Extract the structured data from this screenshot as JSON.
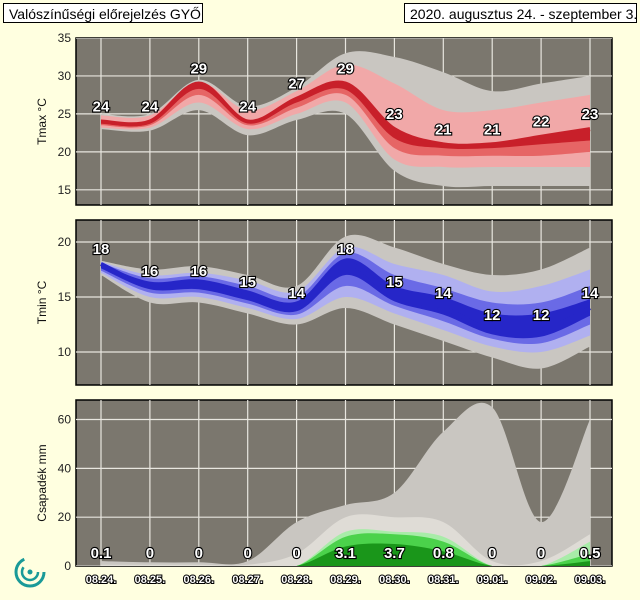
{
  "header": {
    "title": "Valószínűségi előrejelzés GYŐR",
    "period": "2020. augusztus 24. - szeptember 3."
  },
  "colors": {
    "background": "#ffffe0",
    "plot_bg": "#7b776e",
    "grid": "#e8e6df",
    "tmax": "#c8202a",
    "tmin": "#2626c8",
    "precip": "#22a822",
    "logo": "#1a9a98"
  },
  "logo": {
    "icon": "omsz-spiral-logo"
  },
  "chart_data": [
    {
      "type": "area",
      "ylabel": "Tmax °C",
      "ylim": [
        13,
        35
      ],
      "yticks": [
        15,
        20,
        25,
        30,
        35
      ],
      "categories": [
        "08.24.",
        "08.25.",
        "08.26.",
        "08.27.",
        "08.28.",
        "08.29.",
        "08.30.",
        "08.31.",
        "09.01.",
        "09.02.",
        "09.03."
      ],
      "median": [
        24,
        24,
        29,
        24,
        27,
        29,
        23,
        21,
        21,
        22,
        23
      ],
      "labels": [
        "24",
        "24",
        "29",
        "24",
        "27",
        "29",
        "23",
        "21",
        "21",
        "22",
        "23"
      ],
      "bands": [
        {
          "low": [
            23,
            22.8,
            25.5,
            22.2,
            24.2,
            25,
            17.5,
            15.5,
            15.5,
            15.5,
            15.5
          ],
          "high": [
            25,
            25,
            29.5,
            26,
            28.5,
            33,
            32.5,
            30.5,
            28,
            29,
            30
          ]
        },
        {
          "low": [
            23.2,
            23.2,
            26.5,
            23,
            25,
            26.5,
            19,
            18,
            18,
            18,
            18
          ],
          "high": [
            24.8,
            24.8,
            29.2,
            25.5,
            28,
            31.5,
            29,
            25.5,
            25.5,
            26.5,
            27.5
          ]
        },
        {
          "low": [
            23.5,
            23.5,
            27.5,
            23.5,
            25.8,
            27.5,
            20.5,
            19.5,
            19.5,
            19.5,
            20
          ]
        },
        {
          "low": [
            23.7,
            23.7,
            28.3,
            23.8,
            26.5,
            28.2,
            21.8,
            20.5,
            20.5,
            21,
            21.5
          ]
        }
      ]
    },
    {
      "type": "area",
      "ylabel": "Tmin °C",
      "ylim": [
        7,
        22
      ],
      "yticks": [
        10,
        15,
        20
      ],
      "categories": [
        "08.24.",
        "08.25.",
        "08.26.",
        "08.27.",
        "08.28.",
        "08.29.",
        "08.30.",
        "08.31.",
        "09.01.",
        "09.02.",
        "09.03."
      ],
      "median": [
        18,
        16,
        16,
        15,
        14,
        18,
        15,
        14,
        12,
        12,
        14
      ],
      "labels": [
        "18",
        "16",
        "16",
        "15",
        "14",
        "18",
        "15",
        "14",
        "12",
        "12",
        "14"
      ],
      "bands": [
        {
          "low": [
            17,
            14.5,
            14.5,
            13.5,
            12.5,
            14,
            12.5,
            11,
            9.5,
            8.5,
            10.5
          ],
          "high": [
            18.3,
            17.5,
            17.8,
            17,
            16,
            20.5,
            19.5,
            18,
            17,
            17.5,
            19.5
          ]
        },
        {
          "low": [
            17.2,
            15,
            15,
            14,
            13,
            15,
            13.5,
            12,
            10.5,
            10,
            11.5
          ],
          "high": [
            18.2,
            17,
            17.2,
            16.5,
            15.5,
            19.5,
            18,
            17,
            15.5,
            16,
            17.5
          ]
        },
        {
          "low": [
            17.4,
            15.4,
            15.4,
            14.4,
            13.4,
            16,
            14.2,
            12.8,
            11.2,
            10.8,
            12.5
          ],
          "high": [
            18.1,
            16.7,
            16.9,
            16,
            15,
            19,
            17,
            15.8,
            14.5,
            14.5,
            16
          ]
        },
        {
          "low": [
            17.6,
            15.7,
            15.7,
            14.7,
            13.7,
            17,
            14.6,
            13.4,
            11.6,
            11.4,
            13.3
          ],
          "high": [
            18,
            16.4,
            16.6,
            15.6,
            14.6,
            18.5,
            16,
            15,
            13.5,
            13.5,
            14.8
          ]
        }
      ]
    },
    {
      "type": "area",
      "ylabel": "Csapadék mm",
      "ylim": [
        0,
        68
      ],
      "yticks": [
        0,
        20,
        40,
        60
      ],
      "categories": [
        "08.24.",
        "08.25.",
        "08.26.",
        "08.27.",
        "08.28.",
        "08.29.",
        "08.30.",
        "08.31.",
        "09.01.",
        "09.02.",
        "09.03."
      ],
      "median": [
        0.1,
        0,
        0,
        0,
        0,
        3.1,
        3.7,
        0.8,
        0,
        0,
        0.5
      ],
      "labels": [
        "0.1",
        "0",
        "0",
        "0",
        "0",
        "3.1",
        "3.7",
        "0.8",
        "0",
        "0",
        "0.5"
      ],
      "bands": [
        {
          "high": [
            2,
            1.5,
            1.5,
            2,
            18,
            25,
            30,
            55,
            65,
            18,
            60
          ]
        },
        {
          "high": [
            0.5,
            0.5,
            0.5,
            0.5,
            5,
            20,
            20,
            18,
            2,
            2,
            13
          ]
        },
        {
          "high": [
            0,
            0,
            0,
            0,
            0,
            14,
            14,
            12,
            0,
            0,
            10
          ]
        },
        {
          "high": [
            0,
            0,
            0,
            0,
            0,
            12,
            13,
            10,
            0,
            0,
            5
          ]
        },
        {
          "high": [
            0,
            0,
            0,
            0,
            0,
            8,
            9,
            6,
            0,
            0,
            2
          ]
        }
      ]
    }
  ]
}
